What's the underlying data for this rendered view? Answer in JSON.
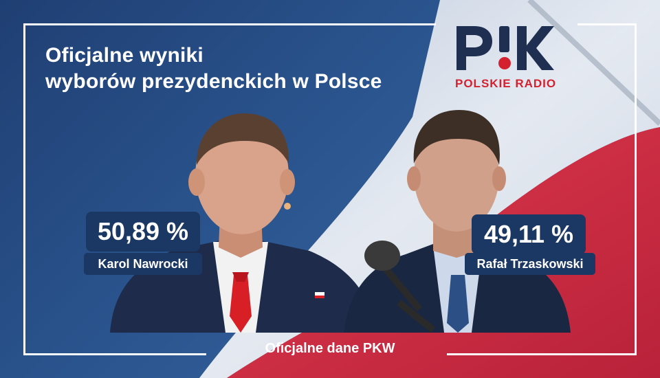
{
  "title": {
    "line1": "Oficjalne wyniki",
    "line2": "wyborów prezydenckich w Polsce"
  },
  "logo": {
    "mark": "PiK",
    "text": "POLSKIE RADIO",
    "brand_color": "#d4212f",
    "mark_color": "#1e2f52"
  },
  "candidates": [
    {
      "name": "Karol Nawrocki",
      "percent": "50,89 %"
    },
    {
      "name": "Rafał Trzaskowski",
      "percent": "49,11 %"
    }
  ],
  "footer": {
    "source": "Oficjalne dane PKW"
  },
  "colors": {
    "background": "#2b558f",
    "badge": "#1b3763",
    "flag_white": "#e9ecf2",
    "flag_red": "#d12e42"
  }
}
